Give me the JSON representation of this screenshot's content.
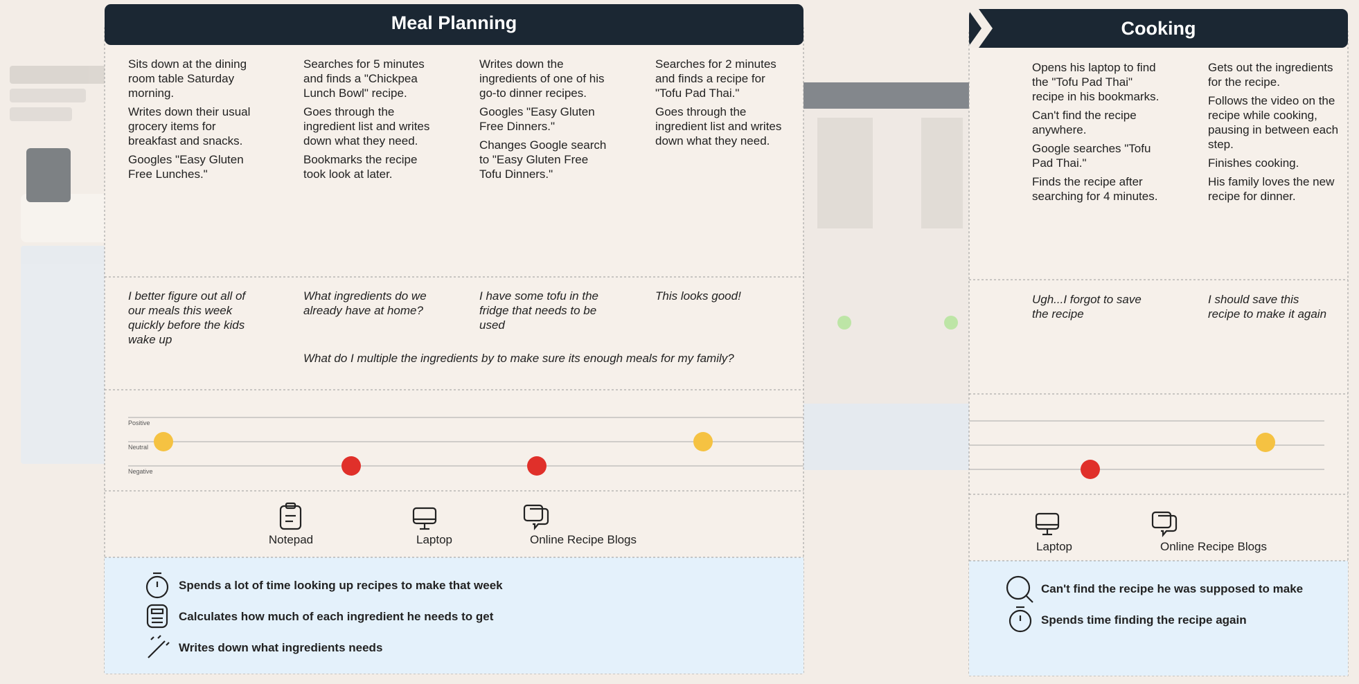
{
  "panels": [
    {
      "title": "Meal Planning",
      "steps": [
        {
          "actions": [
            "Sits down at the dining room table Saturday morning.",
            "Writes down their usual grocery items for breakfast and snacks.",
            "Googles \"Easy Gluten Free Lunches.\""
          ],
          "thought": "I better figure out all of our meals this week quickly before the kids wake up"
        },
        {
          "actions": [
            "Searches for 5 minutes and finds a \"Chickpea Lunch Bowl\" recipe.",
            "Goes through the ingredient list and writes down what they need.",
            "Bookmarks the recipe took look at later."
          ],
          "thought": "What ingredients do we already have at home?"
        },
        {
          "actions": [
            "Writes down the ingredients of one of his go-to dinner recipes.",
            "Googles \"Easy Gluten Free Dinners.\"",
            "Changes Google search to \"Easy Gluten Free Tofu Dinners.\""
          ],
          "thought": "I have some tofu in the fridge that needs to be used"
        },
        {
          "actions": [
            "Searches for 2 minutes and finds a recipe for \"Tofu Pad Thai.\"",
            "Goes through the ingredient list and writes down what they need."
          ],
          "thought": "This looks good!"
        }
      ],
      "shared_thought": "What do I multiple the ingredients by to make sure its enough meals for my family?",
      "emotion_scale": [
        "Positive",
        "Neutral",
        "Negative"
      ],
      "touchpoints": [
        "Notepad",
        "Laptop",
        "Online Recipe Blogs"
      ],
      "pain_points": [
        "Spends a lot of time looking up recipes to make that week",
        "Calculates how much of each ingredient he needs to get",
        "Writes down what ingredients needs"
      ]
    },
    {
      "title": "Cooking",
      "steps": [
        {
          "actions": [
            "Opens his laptop to find the \"Tofu Pad Thai\" recipe in his bookmarks.",
            "Can't find the recipe anywhere.",
            "Google searches \"Tofu Pad Thai.\"",
            "Finds the recipe after searching for 4 minutes."
          ],
          "thought": "Ugh...I forgot to save the recipe"
        },
        {
          "actions": [
            "Gets out the ingredients for the recipe.",
            "Follows the video on the recipe while cooking, pausing in between each step.",
            "Finishes cooking.",
            "His family loves the new recipe for dinner."
          ],
          "thought": "I should save this recipe to make it again"
        }
      ],
      "touchpoints": [
        "Laptop",
        "Online Recipe Blogs"
      ],
      "pain_points": [
        "Can't find the recipe he was supposed to make",
        "Spends time finding the recipe again"
      ]
    }
  ]
}
